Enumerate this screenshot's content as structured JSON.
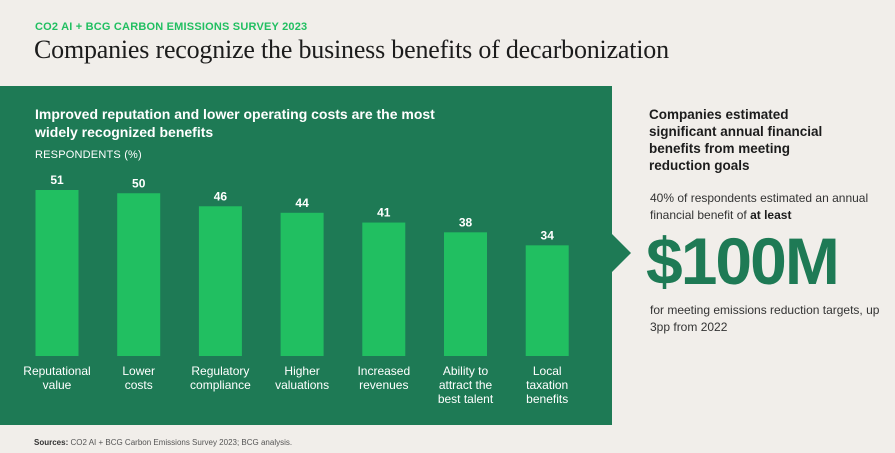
{
  "header": {
    "eyebrow": "CO2 AI + BCG CARBON EMISSIONS SURVEY 2023",
    "title": "Companies recognize the business benefits of decarbonization"
  },
  "chart_data": {
    "type": "bar",
    "title": "Improved reputation and lower operating costs are the most widely recognized benefits",
    "ylabel": "RESPONDENTS (%)",
    "categories": [
      "Reputational value",
      "Lower costs",
      "Regulatory compliance",
      "Higher valuations",
      "Increased revenues",
      "Ability to attract the best talent",
      "Local taxation benefits"
    ],
    "category_lines": [
      [
        "Reputational",
        "value"
      ],
      [
        "Lower",
        "costs"
      ],
      [
        "Regulatory",
        "compliance"
      ],
      [
        "Higher",
        "valuations"
      ],
      [
        "Increased",
        "revenues"
      ],
      [
        "Ability to",
        "attract the",
        "best talent"
      ],
      [
        "Local",
        "taxation",
        "benefits"
      ]
    ],
    "values": [
      51,
      50,
      46,
      44,
      41,
      38,
      34
    ],
    "ylim": [
      0,
      51
    ],
    "grid": false,
    "colors": {
      "panel": "#1e7a55",
      "bar": "#21bf61",
      "label": "#ffffff"
    }
  },
  "sidebar": {
    "heading": "Companies estimated significant annual financial benefits from meeting reduction goals",
    "text_before": "40% of respondents estimated an annual financial benefit of ",
    "text_bold": "at least",
    "big_number": "$100M",
    "text_after": "for meeting emissions reduction targets, up 3pp from 2022"
  },
  "footer": {
    "sources_label": "Sources:",
    "sources_text": " CO2 AI + BCG Carbon Emissions Survey 2023; BCG analysis."
  }
}
